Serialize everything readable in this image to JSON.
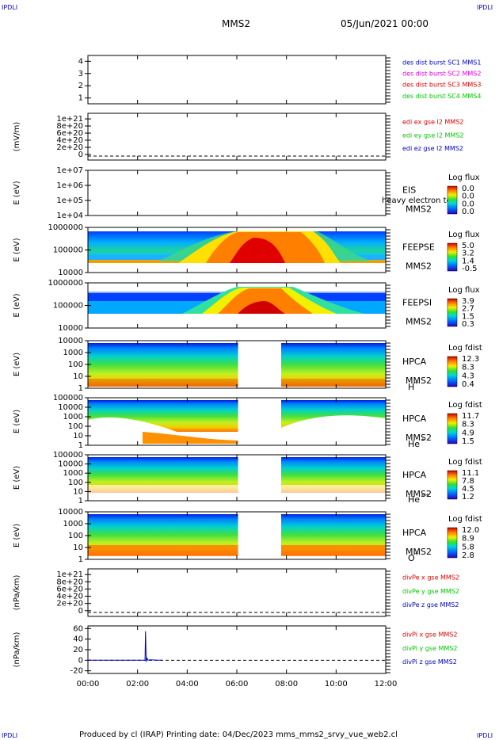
{
  "corners": {
    "top_left": "IPDLI",
    "top_right": "IPDLI",
    "bottom_left": "IPDLI",
    "bottom_right": "IPDLI"
  },
  "header": {
    "spacecraft": "MMS2",
    "date": "05/Jun/2021 00:00"
  },
  "footer": {
    "text": "Produced by cl (IRAP)   Printing date: 04/Dec/2023   mms_mms2_srvy_vue_web2.cl"
  },
  "colors": {
    "blue": "#0000c8",
    "magenta": "#e000e0",
    "red": "#e00000",
    "green": "#00c800",
    "black": "#000000"
  },
  "chart_data": {
    "type": "heatmap",
    "xlabel": "",
    "x_ticks": [
      "00:00",
      "02:00",
      "04:00",
      "06:00",
      "08:00",
      "10:00",
      "12:00"
    ],
    "x_range_hours": [
      0,
      12
    ],
    "data_gap_hours": [
      6.05,
      7.75
    ],
    "panels": [
      {
        "id": "p1",
        "kind": "line",
        "ylabel": "",
        "y_ticks": [
          "1",
          "2",
          "3",
          "4"
        ],
        "legend": [
          {
            "text": "des dist burst SC1 MMS1",
            "color": "#0000c8"
          },
          {
            "text": "des dist burst SC2 MMS2",
            "color": "#e000e0"
          },
          {
            "text": "des dist burst SC3 MMS3",
            "color": "#e00000"
          },
          {
            "text": "des dist burst SC4 MMS4",
            "color": "#00c800"
          }
        ]
      },
      {
        "id": "p2",
        "kind": "line",
        "ylabel": "(mV/m)",
        "y_ticks": [
          "0",
          "2e+20",
          "4e+20",
          "6e+20",
          "8e+20",
          "1e+21"
        ],
        "zero_line": true,
        "legend": [
          {
            "text": "edi ex gse l2 MMS2",
            "color": "#e00000"
          },
          {
            "text": "edi ey gse l2 MMS2",
            "color": "#00c800"
          },
          {
            "text": "edi ez gse l2 MMS2",
            "color": "#0000c8"
          }
        ]
      },
      {
        "id": "p3",
        "kind": "spectrogram",
        "ylabel": "E (eV)",
        "y_ticks": [
          "1e+04",
          "1e+05",
          "1e+06",
          "1e+07"
        ],
        "right_labels": [
          "EIS",
          "MMS2"
        ],
        "overlay_text": "heavy electron to",
        "colorbar": {
          "title": "Log flux",
          "values": [
            "0.0",
            "0.0",
            "0.0",
            "0.0"
          ]
        }
      },
      {
        "id": "p4",
        "kind": "spectrogram",
        "ylabel": "E (eV)",
        "y_ticks": [
          "10000",
          "100000",
          "1000000"
        ],
        "right_labels": [
          "FEEPSE",
          "MMS2"
        ],
        "colorbar": {
          "title": "Log flux",
          "values": [
            "5.0",
            "3.2",
            "1.4",
            "-0.5"
          ]
        }
      },
      {
        "id": "p5",
        "kind": "spectrogram",
        "ylabel": "E (eV)",
        "y_ticks": [
          "10000",
          "100000",
          "1000000"
        ],
        "right_labels": [
          "FEEPSI",
          "MMS2"
        ],
        "colorbar": {
          "title": "Log flux",
          "values": [
            "3.9",
            "2.7",
            "1.5",
            "0.3"
          ]
        }
      },
      {
        "id": "p6",
        "kind": "spectrogram",
        "ylabel": "E (eV)",
        "y_ticks": [
          "1",
          "10",
          "100",
          "1000",
          "10000"
        ],
        "right_labels": [
          "HPCA",
          "MMS2"
        ],
        "species": {
          "base": "H",
          "sup": "+"
        },
        "colorbar": {
          "title": "Log fdist",
          "values": [
            "12.3",
            "8.3",
            "4.3",
            "0.4"
          ]
        }
      },
      {
        "id": "p7",
        "kind": "spectrogram",
        "ylabel": "E (eV)",
        "y_ticks": [
          "1",
          "10",
          "100",
          "1000",
          "10000",
          "100000"
        ],
        "right_labels": [
          "HPCA",
          "MMS2"
        ],
        "species": {
          "base": "He",
          "sup": "+"
        },
        "colorbar": {
          "title": "Log fdist",
          "values": [
            "11.7",
            "8.3",
            "4.9",
            "1.5"
          ]
        }
      },
      {
        "id": "p8",
        "kind": "spectrogram",
        "ylabel": "E (eV)",
        "y_ticks": [
          "1",
          "10",
          "100",
          "1000",
          "10000",
          "100000"
        ],
        "right_labels": [
          "HPCA",
          "MMS2"
        ],
        "species": {
          "base": "He",
          "sup": "++"
        },
        "colorbar": {
          "title": "Log fdist",
          "values": [
            "11.1",
            "7.8",
            "4.5",
            "1.2"
          ]
        }
      },
      {
        "id": "p9",
        "kind": "spectrogram",
        "ylabel": "E (eV)",
        "y_ticks": [
          "1",
          "10",
          "100",
          "1000",
          "10000"
        ],
        "right_labels": [
          "HPCA",
          "MMS2"
        ],
        "species": {
          "base": "O",
          "sup": "+"
        },
        "colorbar": {
          "title": "Log fdist",
          "values": [
            "12.0",
            "8.9",
            "5.8",
            "2.8"
          ]
        }
      },
      {
        "id": "p10",
        "kind": "line",
        "ylabel": "(nPa/km)",
        "y_ticks": [
          "0",
          "2e+20",
          "4e+20",
          "6e+20",
          "8e+20",
          "1e+21"
        ],
        "zero_line": true,
        "legend": [
          {
            "text": "divPe x gse MMS2",
            "color": "#e00000"
          },
          {
            "text": "divPe y gse MMS2",
            "color": "#00c800"
          },
          {
            "text": "divPe z gse MMS2",
            "color": "#0000c8"
          }
        ]
      },
      {
        "id": "p11",
        "kind": "line",
        "ylabel": "(nPa/km)",
        "y_ticks": [
          "-20",
          "0",
          "20",
          "40",
          "60"
        ],
        "y_range": [
          -25,
          65
        ],
        "zero_line": true,
        "legend": [
          {
            "text": "divPi x gse MMS2",
            "color": "#e00000"
          },
          {
            "text": "divPi y gse MMS2",
            "color": "#00c800"
          },
          {
            "text": "divPi z gse MMS2",
            "color": "#0000c8"
          }
        ],
        "series": [
          {
            "name": "divPi z gse MMS2",
            "color": "#0000c8",
            "x_hours": [
              0,
              2.2,
              2.3,
              2.32,
              2.35,
              2.38,
              2.42,
              2.5,
              2.8,
              3.0
            ],
            "y": [
              0,
              0,
              0,
              55,
              -3,
              4,
              0,
              1,
              0,
              0
            ]
          }
        ]
      }
    ]
  }
}
